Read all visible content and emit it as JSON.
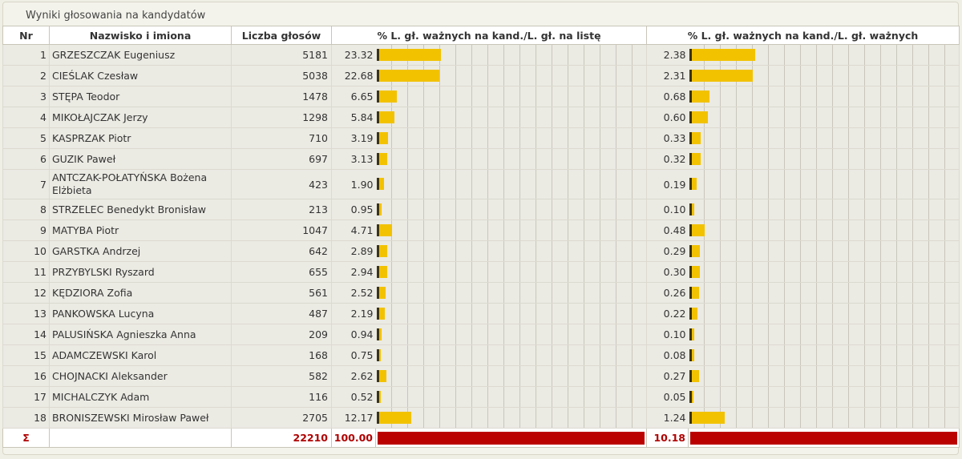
{
  "panel": {
    "title": "Wyniki głosowania na kandydatów"
  },
  "headers": {
    "nr": "Nr",
    "name": "Nazwisko i imiona",
    "votes": "Liczba głosów",
    "pct_list": "% L. gł. ważnych na kand./L. gł. na listę",
    "pct_valid": "% L. gł. ważnych na kand./L. gł. ważnych"
  },
  "candidates": [
    {
      "nr": "1",
      "name": "GRZESZCZAK Eugeniusz",
      "votes": "5181",
      "pct_list": "23.32",
      "pct_valid": "2.38"
    },
    {
      "nr": "2",
      "name": "CIEŚLAK Czesław",
      "votes": "5038",
      "pct_list": "22.68",
      "pct_valid": "2.31"
    },
    {
      "nr": "3",
      "name": "STĘPA Teodor",
      "votes": "1478",
      "pct_list": "6.65",
      "pct_valid": "0.68"
    },
    {
      "nr": "4",
      "name": "MIKOŁAJCZAK Jerzy",
      "votes": "1298",
      "pct_list": "5.84",
      "pct_valid": "0.60"
    },
    {
      "nr": "5",
      "name": "KASPRZAK Piotr",
      "votes": "710",
      "pct_list": "3.19",
      "pct_valid": "0.33"
    },
    {
      "nr": "6",
      "name": "GUZIK Paweł",
      "votes": "697",
      "pct_list": "3.13",
      "pct_valid": "0.32"
    },
    {
      "nr": "7",
      "name": "ANTCZAK-POŁATYŃSKA Bożena Elżbieta",
      "votes": "423",
      "pct_list": "1.90",
      "pct_valid": "0.19"
    },
    {
      "nr": "8",
      "name": "STRZELEC Benedykt Bronisław",
      "votes": "213",
      "pct_list": "0.95",
      "pct_valid": "0.10"
    },
    {
      "nr": "9",
      "name": "MATYBA Piotr",
      "votes": "1047",
      "pct_list": "4.71",
      "pct_valid": "0.48"
    },
    {
      "nr": "10",
      "name": "GARSTKA Andrzej",
      "votes": "642",
      "pct_list": "2.89",
      "pct_valid": "0.29"
    },
    {
      "nr": "11",
      "name": "PRZYBYLSKI Ryszard",
      "votes": "655",
      "pct_list": "2.94",
      "pct_valid": "0.30"
    },
    {
      "nr": "12",
      "name": "KĘDZIORA Zofia",
      "votes": "561",
      "pct_list": "2.52",
      "pct_valid": "0.26"
    },
    {
      "nr": "13",
      "name": "PANKOWSKA Lucyna",
      "votes": "487",
      "pct_list": "2.19",
      "pct_valid": "0.22"
    },
    {
      "nr": "14",
      "name": "PALUSIŃSKA Agnieszka Anna",
      "votes": "209",
      "pct_list": "0.94",
      "pct_valid": "0.10"
    },
    {
      "nr": "15",
      "name": "ADAMCZEWSKI Karol",
      "votes": "168",
      "pct_list": "0.75",
      "pct_valid": "0.08"
    },
    {
      "nr": "16",
      "name": "CHOJNACKI Aleksander",
      "votes": "582",
      "pct_list": "2.62",
      "pct_valid": "0.27"
    },
    {
      "nr": "17",
      "name": "MICHALCZYK Adam",
      "votes": "116",
      "pct_list": "0.52",
      "pct_valid": "0.05"
    },
    {
      "nr": "18",
      "name": "BRONISZEWSKI Mirosław Paweł",
      "votes": "2705",
      "pct_list": "12.17",
      "pct_valid": "1.24"
    }
  ],
  "total": {
    "sigma": "Σ",
    "votes": "22210",
    "pct_list": "100.00",
    "pct_valid": "10.18"
  },
  "colors": {
    "bar": "#f2c200",
    "sum_bar": "#bb0000",
    "sum_text": "#b00000"
  }
}
